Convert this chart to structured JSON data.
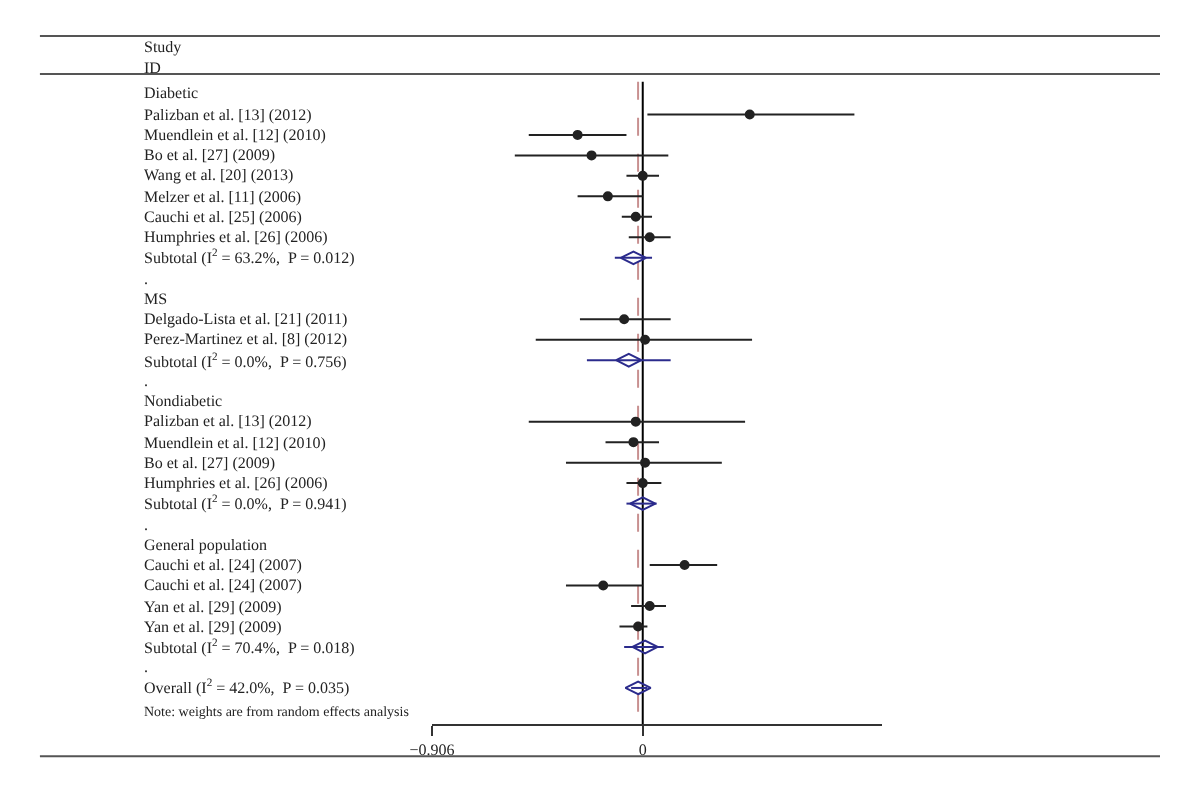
{
  "chart_data": {
    "type": "scatter",
    "orientation": "horizontal",
    "ylabel": "Study\nID",
    "categories": [
      "Diabetic",
      "Palizban et al. [13] (2012)",
      "Muendlein et al. [12] (2010)",
      "Bo et al. [27] (2009)",
      "Wang et al. [20] (2013)",
      "Melzer et al. [11] (2006)",
      "Cauchi et al. [25] (2006)",
      "Humphries et al. [26] (2006)",
      "Subtotal (I$^{2}$ = 63.2%,  P = 0.012)",
      ".",
      "MS",
      "Delgado-Lista et al. [21] (2011)",
      "Perez-Martinez et al. [8] (2012)",
      "Subtotal (I$^{2}$ = 0.0%,  P = 0.756)",
      ".",
      "Nondiabetic",
      "Palizban et al. [13] (2012)",
      "Muendlein et al. [12] (2010)",
      "Bo et al. [27] (2009)",
      "Humphries et al. [26] (2006)",
      "Subtotal (I$^{2}$ = 0.0%,  P = 0.941)",
      ".",
      "General population",
      "Cauchi et al. [24] (2007)",
      "Cauchi et al. [24] (2007)",
      "Yan et al. [29] (2009)",
      "Yan et al. [29] (2009)",
      "Subtotal (I$^{2}$ = 70.4%,  P = 0.018)",
      ".",
      "Overall (I$^{2}$ = 42.0%,  P = 0.035)"
    ],
    "series": [
      {
        "type": "scatter",
        "marker": "circle",
        "color": "#222222",
        "values": [
          null,
          0.46,
          -0.28,
          -0.22,
          0.0,
          -0.15,
          -0.03,
          0.03,
          null,
          null,
          null,
          -0.08,
          0.01,
          null,
          null,
          null,
          -0.03,
          -0.04,
          0.01,
          0.0,
          null,
          null,
          null,
          0.18,
          -0.17,
          0.03,
          -0.02,
          null,
          null,
          null
        ],
        "errors": [
          null,
          [
            0.02,
            0.91
          ],
          [
            -0.49,
            -0.07
          ],
          [
            -0.55,
            0.11
          ],
          [
            -0.07,
            0.07
          ],
          [
            -0.28,
            0.0
          ],
          [
            -0.09,
            0.04
          ],
          [
            -0.06,
            0.12
          ],
          null,
          null,
          null,
          [
            -0.27,
            0.12
          ],
          [
            -0.46,
            0.47
          ],
          null,
          null,
          null,
          [
            -0.49,
            0.44
          ],
          [
            -0.16,
            0.07
          ],
          [
            -0.33,
            0.34
          ],
          [
            -0.07,
            0.08
          ],
          null,
          null,
          null,
          [
            0.03,
            0.32
          ],
          [
            -0.33,
            0.0
          ],
          [
            -0.05,
            0.1
          ],
          [
            -0.1,
            0.02
          ],
          null,
          null,
          null
        ]
      },
      {
        "type": "scatter",
        "marker": "diamond",
        "color": "#2b2b8c",
        "values": [
          null,
          null,
          null,
          null,
          null,
          null,
          null,
          null,
          -0.04,
          null,
          null,
          null,
          null,
          -0.06,
          null,
          null,
          null,
          null,
          null,
          null,
          0.0,
          null,
          null,
          null,
          null,
          null,
          null,
          0.01,
          null,
          -0.02
        ],
        "errors": [
          null,
          null,
          null,
          null,
          null,
          null,
          null,
          null,
          [
            -0.12,
            0.04
          ],
          null,
          null,
          null,
          null,
          [
            -0.24,
            0.12
          ],
          null,
          null,
          null,
          null,
          null,
          null,
          [
            -0.07,
            0.06
          ],
          null,
          null,
          null,
          null,
          null,
          null,
          [
            -0.08,
            0.09
          ],
          null,
          [
            -0.05,
            0.02
          ]
        ]
      }
    ],
    "xlim": [
      -0.906,
      1.03
    ],
    "xticks": [
      -0.906,
      0
    ],
    "ref_lines": [
      {
        "axis": "x",
        "value": 0,
        "color": "#000000",
        "line_style": "solid"
      },
      {
        "axis": "x",
        "value": -0.02,
        "color": "#c89090",
        "line_style": "dashed"
      }
    ],
    "annotations": [
      "Note: weights are from random effects analysis"
    ]
  }
}
